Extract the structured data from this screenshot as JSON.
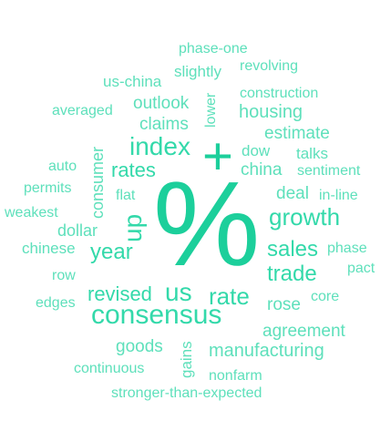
{
  "word_cloud": {
    "colors": {
      "light": "#5ee0bb",
      "medium": "#33d9aa",
      "strong": "#1ccf9b"
    },
    "words": {
      "percent": "%",
      "plus": "+",
      "consensus": "consensus",
      "index": "index",
      "growth": "growth",
      "us": "us",
      "up": "up",
      "year": "year",
      "sales": "sales",
      "trade": "trade",
      "rate": "rate",
      "rates": "rates",
      "revised": "revised",
      "china": "china",
      "housing": "housing",
      "manufacturing": "manufacturing",
      "agreement": "agreement",
      "outlook": "outlook",
      "estimate": "estimate",
      "consumer": "consumer",
      "dollar": "dollar",
      "rose": "rose",
      "goods": "goods",
      "claims": "claims",
      "construction": "construction",
      "deal": "deal",
      "chinese": "chinese",
      "us_china": "us-china",
      "slightly": "slightly",
      "lower": "lower",
      "averaged": "averaged",
      "phase_one": "phase-one",
      "revolving": "revolving",
      "dow": "dow",
      "talks": "talks",
      "sentiment": "sentiment",
      "auto": "auto",
      "permits": "permits",
      "flat": "flat",
      "in_line": "in-line",
      "weakest": "weakest",
      "phase": "phase",
      "pact": "pact",
      "row": "row",
      "edges": "edges",
      "core": "core",
      "gains": "gains",
      "continuous": "continuous",
      "nonfarm": "nonfarm",
      "stronger_than_expected": "stronger-than-expected"
    }
  }
}
